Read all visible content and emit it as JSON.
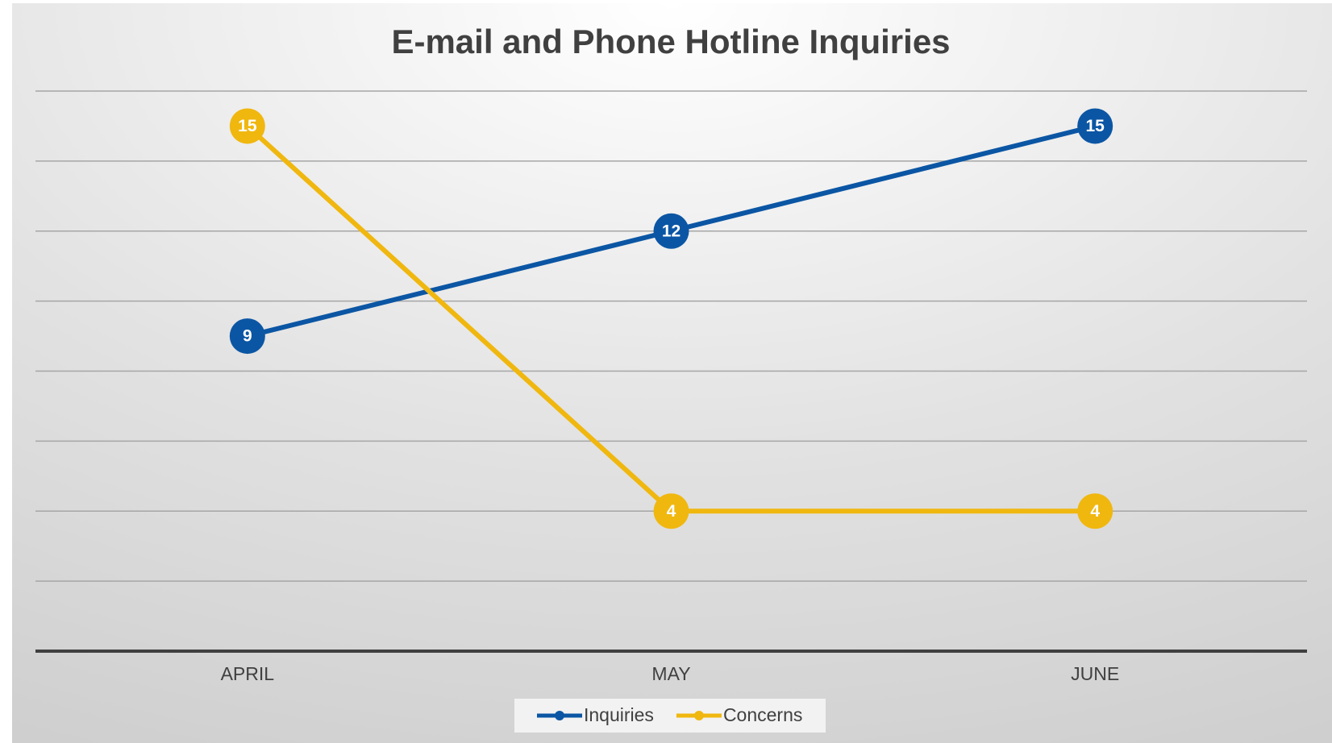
{
  "chart_data": {
    "type": "line",
    "title": "E-mail and Phone Hotline Inquiries",
    "categories": [
      "APRIL",
      "MAY",
      "JUNE"
    ],
    "series": [
      {
        "name": "Inquiries",
        "color": "#0b56a4",
        "values": [
          9,
          12,
          15
        ]
      },
      {
        "name": "Concerns",
        "color": "#f0b70f",
        "values": [
          15,
          4,
          4
        ]
      }
    ],
    "ylim": [
      0,
      16
    ],
    "yticks": [
      0,
      2,
      4,
      6,
      8,
      10,
      12,
      14,
      16
    ],
    "grid": true,
    "legend": "bottom"
  }
}
